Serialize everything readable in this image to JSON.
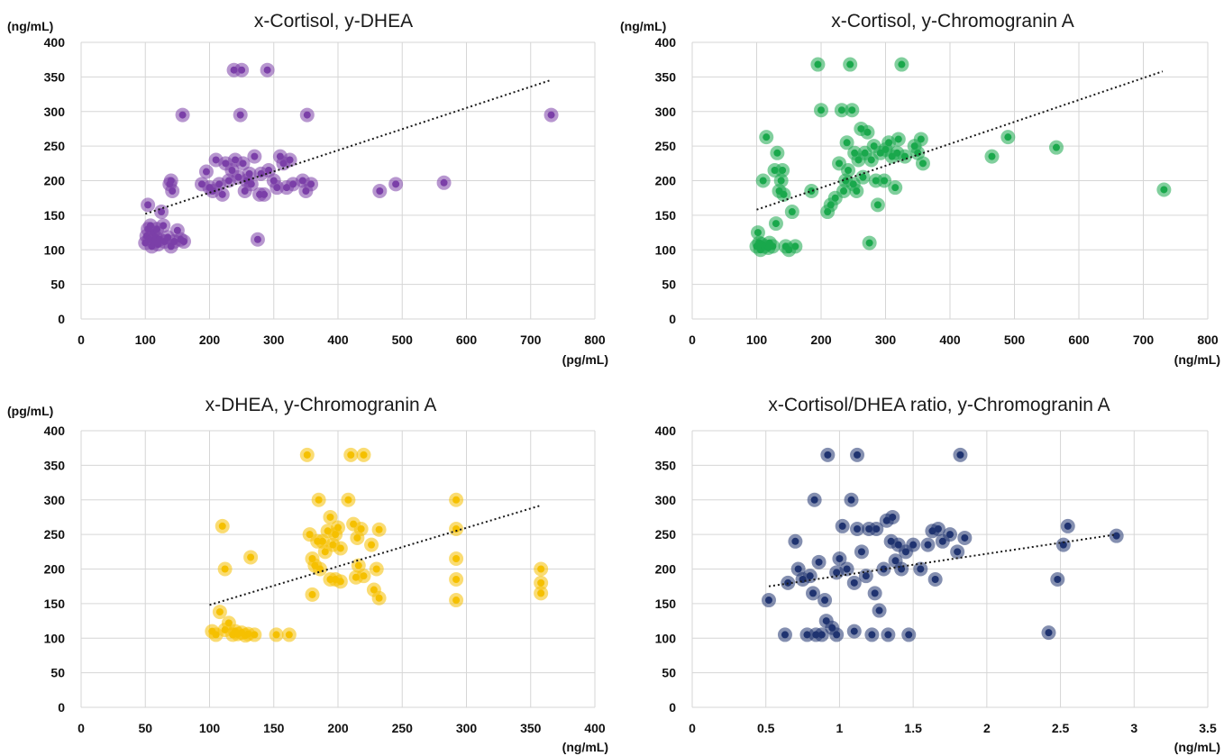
{
  "chart_data": [
    {
      "type": "scatter",
      "title": "x-Cortisol, y-DHEA",
      "ylabel": "(ng/mL)",
      "xlabel": "(pg/mL)",
      "xlim": [
        0,
        800
      ],
      "ylim": [
        0,
        400
      ],
      "xticks": [
        "0",
        "100",
        "200",
        "300",
        "400",
        "500",
        "600",
        "700",
        "800"
      ],
      "yticks": [
        "0",
        "50",
        "100",
        "150",
        "200",
        "250",
        "300",
        "350",
        "400"
      ],
      "color": "#7b3fa8",
      "trend": {
        "x": [
          100,
          730
        ],
        "y": [
          152,
          345
        ]
      },
      "points": [
        [
          100,
          110
        ],
        [
          102,
          120
        ],
        [
          104,
          130
        ],
        [
          106,
          115
        ],
        [
          108,
          135
        ],
        [
          110,
          105
        ],
        [
          112,
          125
        ],
        [
          114,
          112
        ],
        [
          116,
          118
        ],
        [
          118,
          130
        ],
        [
          120,
          108
        ],
        [
          122,
          115
        ],
        [
          104,
          165
        ],
        [
          125,
          155
        ],
        [
          128,
          135
        ],
        [
          130,
          112
        ],
        [
          135,
          118
        ],
        [
          140,
          105
        ],
        [
          145,
          112
        ],
        [
          150,
          128
        ],
        [
          155,
          115
        ],
        [
          160,
          112
        ],
        [
          138,
          195
        ],
        [
          140,
          200
        ],
        [
          142,
          185
        ],
        [
          158,
          295
        ],
        [
          188,
          195
        ],
        [
          195,
          213
        ],
        [
          200,
          190
        ],
        [
          205,
          185
        ],
        [
          210,
          230
        ],
        [
          215,
          195
        ],
        [
          220,
          180
        ],
        [
          225,
          225
        ],
        [
          230,
          200
        ],
        [
          235,
          215
        ],
        [
          238,
          360
        ],
        [
          240,
          230
        ],
        [
          245,
          205
        ],
        [
          248,
          295
        ],
        [
          250,
          360
        ],
        [
          252,
          225
        ],
        [
          255,
          185
        ],
        [
          258,
          200
        ],
        [
          262,
          210
        ],
        [
          265,
          195
        ],
        [
          270,
          235
        ],
        [
          275,
          115
        ],
        [
          278,
          180
        ],
        [
          280,
          210
        ],
        [
          285,
          180
        ],
        [
          290,
          360
        ],
        [
          292,
          215
        ],
        [
          300,
          200
        ],
        [
          305,
          190
        ],
        [
          310,
          235
        ],
        [
          315,
          225
        ],
        [
          320,
          190
        ],
        [
          325,
          230
        ],
        [
          330,
          195
        ],
        [
          345,
          200
        ],
        [
          350,
          185
        ],
        [
          352,
          295
        ],
        [
          358,
          195
        ],
        [
          465,
          185
        ],
        [
          490,
          195
        ],
        [
          565,
          197
        ],
        [
          732,
          295
        ]
      ]
    },
    {
      "type": "scatter",
      "title": "x-Cortisol, y-Chromogranin A",
      "ylabel": "(ng/mL)",
      "xlabel": "(ng/mL)",
      "xlim": [
        0,
        800
      ],
      "ylim": [
        0,
        400
      ],
      "xticks": [
        "0",
        "100",
        "200",
        "300",
        "400",
        "500",
        "600",
        "700",
        "800"
      ],
      "yticks": [
        "0",
        "50",
        "100",
        "150",
        "200",
        "250",
        "300",
        "350",
        "400"
      ],
      "color": "#1aa84c",
      "trend": {
        "x": [
          100,
          730
        ],
        "y": [
          158,
          358
        ]
      },
      "points": [
        [
          100,
          105
        ],
        [
          102,
          125
        ],
        [
          104,
          110
        ],
        [
          106,
          100
        ],
        [
          108,
          108
        ],
        [
          110,
          200
        ],
        [
          112,
          105
        ],
        [
          115,
          263
        ],
        [
          118,
          103
        ],
        [
          120,
          110
        ],
        [
          125,
          105
        ],
        [
          128,
          215
        ],
        [
          130,
          138
        ],
        [
          132,
          240
        ],
        [
          135,
          185
        ],
        [
          138,
          200
        ],
        [
          140,
          215
        ],
        [
          142,
          180
        ],
        [
          145,
          105
        ],
        [
          150,
          100
        ],
        [
          155,
          155
        ],
        [
          160,
          105
        ],
        [
          185,
          185
        ],
        [
          195,
          368
        ],
        [
          200,
          302
        ],
        [
          210,
          155
        ],
        [
          215,
          165
        ],
        [
          222,
          175
        ],
        [
          228,
          225
        ],
        [
          232,
          302
        ],
        [
          235,
          185
        ],
        [
          238,
          200
        ],
        [
          240,
          255
        ],
        [
          242,
          215
        ],
        [
          245,
          368
        ],
        [
          248,
          302
        ],
        [
          250,
          195
        ],
        [
          252,
          240
        ],
        [
          255,
          185
        ],
        [
          258,
          230
        ],
        [
          262,
          275
        ],
        [
          265,
          205
        ],
        [
          268,
          240
        ],
        [
          272,
          270
        ],
        [
          275,
          110
        ],
        [
          278,
          230
        ],
        [
          282,
          250
        ],
        [
          285,
          200
        ],
        [
          288,
          165
        ],
        [
          292,
          240
        ],
        [
          298,
          200
        ],
        [
          300,
          245
        ],
        [
          305,
          255
        ],
        [
          310,
          235
        ],
        [
          315,
          190
        ],
        [
          318,
          240
        ],
        [
          320,
          260
        ],
        [
          325,
          368
        ],
        [
          330,
          235
        ],
        [
          345,
          250
        ],
        [
          350,
          240
        ],
        [
          355,
          260
        ],
        [
          358,
          225
        ],
        [
          465,
          235
        ],
        [
          490,
          263
        ],
        [
          565,
          248
        ],
        [
          732,
          187
        ]
      ]
    },
    {
      "type": "scatter",
      "title": "x-DHEA, y-Chromogranin A",
      "ylabel": "(pg/mL)",
      "xlabel": "(ng/mL)",
      "xlim": [
        0,
        400
      ],
      "ylim": [
        0,
        400
      ],
      "xticks": [
        "0",
        "50",
        "100",
        "150",
        "200",
        "250",
        "300",
        "350",
        "400"
      ],
      "yticks": [
        "0",
        "50",
        "100",
        "150",
        "200",
        "250",
        "300",
        "350",
        "400"
      ],
      "color": "#f5c000",
      "trend": {
        "x": [
          100,
          358
        ],
        "y": [
          148,
          292
        ]
      },
      "points": [
        [
          102,
          110
        ],
        [
          105,
          105
        ],
        [
          108,
          138
        ],
        [
          110,
          262
        ],
        [
          112,
          200
        ],
        [
          112,
          112
        ],
        [
          115,
          122
        ],
        [
          118,
          105
        ],
        [
          120,
          110
        ],
        [
          122,
          106
        ],
        [
          125,
          108
        ],
        [
          128,
          104
        ],
        [
          130,
          106
        ],
        [
          132,
          217
        ],
        [
          135,
          105
        ],
        [
          152,
          105
        ],
        [
          162,
          105
        ],
        [
          176,
          365
        ],
        [
          178,
          250
        ],
        [
          180,
          163
        ],
        [
          180,
          215
        ],
        [
          182,
          205
        ],
        [
          184,
          240
        ],
        [
          185,
          300
        ],
        [
          186,
          200
        ],
        [
          188,
          240
        ],
        [
          190,
          225
        ],
        [
          192,
          255
        ],
        [
          194,
          275
        ],
        [
          194,
          185
        ],
        [
          196,
          235
        ],
        [
          198,
          250
        ],
        [
          198,
          185
        ],
        [
          200,
          260
        ],
        [
          202,
          230
        ],
        [
          202,
          182
        ],
        [
          208,
          300
        ],
        [
          210,
          365
        ],
        [
          212,
          265
        ],
        [
          214,
          188
        ],
        [
          215,
          245
        ],
        [
          216,
          205
        ],
        [
          218,
          258
        ],
        [
          220,
          365
        ],
        [
          220,
          190
        ],
        [
          226,
          235
        ],
        [
          228,
          170
        ],
        [
          230,
          200
        ],
        [
          232,
          158
        ],
        [
          232,
          257
        ],
        [
          292,
          300
        ],
        [
          292,
          258
        ],
        [
          292,
          215
        ],
        [
          292,
          185
        ],
        [
          292,
          155
        ],
        [
          358,
          200
        ],
        [
          358,
          180
        ],
        [
          358,
          165
        ]
      ]
    },
    {
      "type": "scatter",
      "title": "x-Cortisol/DHEA ratio, y-Chromogranin A",
      "ylabel": "",
      "xlabel": "(ng/mL)",
      "xlim": [
        0,
        3.5
      ],
      "ylim": [
        0,
        400
      ],
      "xticks": [
        "0",
        "0.5",
        "1",
        "1.5",
        "2",
        "2.5",
        "3",
        "3.5"
      ],
      "yticks": [
        "0",
        "50",
        "100",
        "150",
        "200",
        "250",
        "300",
        "350",
        "400"
      ],
      "color": "#1f3370",
      "trend": {
        "x": [
          0.52,
          2.88
        ],
        "y": [
          175,
          250
        ]
      },
      "points": [
        [
          0.52,
          155
        ],
        [
          0.63,
          105
        ],
        [
          0.65,
          180
        ],
        [
          0.7,
          240
        ],
        [
          0.72,
          200
        ],
        [
          0.75,
          185
        ],
        [
          0.78,
          105
        ],
        [
          0.8,
          190
        ],
        [
          0.82,
          165
        ],
        [
          0.83,
          300
        ],
        [
          0.84,
          105
        ],
        [
          0.86,
          210
        ],
        [
          0.88,
          105
        ],
        [
          0.9,
          155
        ],
        [
          0.91,
          125
        ],
        [
          0.92,
          365
        ],
        [
          0.95,
          115
        ],
        [
          0.98,
          105
        ],
        [
          0.98,
          195
        ],
        [
          1.0,
          215
        ],
        [
          1.02,
          262
        ],
        [
          1.05,
          200
        ],
        [
          1.08,
          300
        ],
        [
          1.1,
          180
        ],
        [
          1.1,
          110
        ],
        [
          1.12,
          258
        ],
        [
          1.12,
          365
        ],
        [
          1.15,
          225
        ],
        [
          1.18,
          190
        ],
        [
          1.2,
          258
        ],
        [
          1.22,
          105
        ],
        [
          1.24,
          165
        ],
        [
          1.25,
          258
        ],
        [
          1.27,
          140
        ],
        [
          1.3,
          200
        ],
        [
          1.32,
          270
        ],
        [
          1.33,
          105
        ],
        [
          1.35,
          240
        ],
        [
          1.36,
          275
        ],
        [
          1.38,
          212
        ],
        [
          1.4,
          235
        ],
        [
          1.42,
          200
        ],
        [
          1.45,
          225
        ],
        [
          1.47,
          105
        ],
        [
          1.5,
          235
        ],
        [
          1.55,
          200
        ],
        [
          1.6,
          235
        ],
        [
          1.63,
          255
        ],
        [
          1.65,
          185
        ],
        [
          1.67,
          258
        ],
        [
          1.7,
          240
        ],
        [
          1.75,
          250
        ],
        [
          1.8,
          225
        ],
        [
          1.82,
          365
        ],
        [
          1.85,
          245
        ],
        [
          2.42,
          108
        ],
        [
          2.48,
          185
        ],
        [
          2.52,
          235
        ],
        [
          2.55,
          262
        ],
        [
          2.88,
          248
        ]
      ]
    }
  ]
}
